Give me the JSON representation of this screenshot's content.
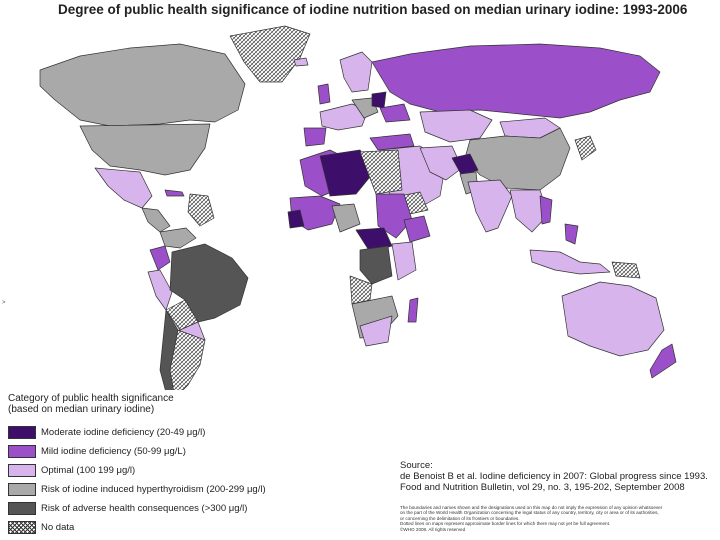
{
  "title": "Degree of public health significance of iodine nutrition based on median urinary iodine: 1993-2006",
  "colors": {
    "moderate": "#3d0f6a",
    "mild": "#9b4fc8",
    "optimal": "#d7b4ec",
    "risk_induced": "#a9a9a9",
    "risk_adverse": "#555555",
    "no_data": "hatched",
    "border": "#333333"
  },
  "legend": {
    "title": "Category of public health significance\n(based on median urinary iodine)",
    "items": [
      {
        "key": "moderate",
        "label": "Moderate iodine deficiency (20-49 μg/l)"
      },
      {
        "key": "mild",
        "label": "Mild iodine deficiency (50-99 μg/L)"
      },
      {
        "key": "optimal",
        "label": "Optimal (100 199 μg/l)"
      },
      {
        "key": "risk_induced",
        "label": "Risk of iodine induced hyperthyroidism (200-299 μg/l)"
      },
      {
        "key": "risk_adverse",
        "label": "Risk of adverse health consequences (>300 μg/l)"
      },
      {
        "key": "no_data",
        "label": "No data"
      }
    ]
  },
  "source": {
    "heading": "Source:",
    "line1": "de Benoist B et al. Iodine deficiency in 2007: Global progress since 1993.",
    "line2": "Food and Nutrition Bulletin, vol 29, no. 3, 195-202, September 2008"
  },
  "disclaimer": {
    "line1": "The boundaries and names shown and the designations used on this map do not imply the expression of any opinion whatsoever",
    "line2": "on the part of the World Health Organization concerning the legal status of any country, territory, city or area or of its authorities,",
    "line3": "or concerning the delimitation of its frontiers or boundaries.",
    "line4": "Dotted lines on maps represent approximate border lines for which there may not yet be full agreement.",
    "line5": "©WHO 2008. All rights reserved"
  },
  "left_marker": ">"
}
